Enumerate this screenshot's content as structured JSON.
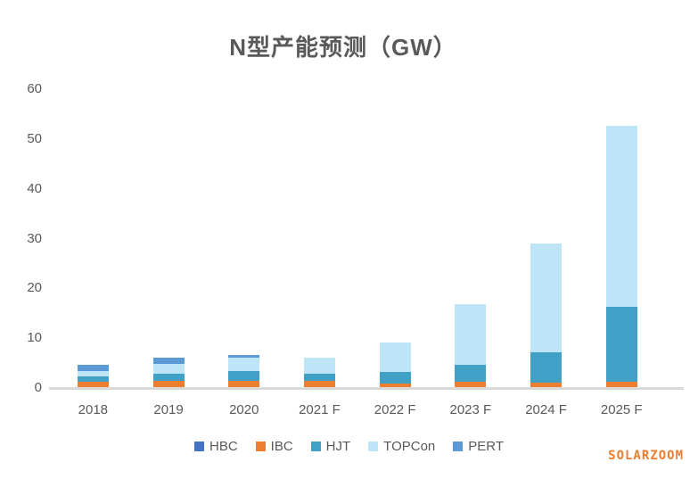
{
  "title": "N型产能预测（GW）",
  "watermark": "SOLARZOOM",
  "colors": {
    "HBC": "#4472C4",
    "IBC": "#ED7D31",
    "HJT": "#41A0C6",
    "TOPCon": "#BDE4F7",
    "PERT": "#5B9BD5",
    "axis_line": "#D9D9D9",
    "text": "#595959",
    "watermark": "#ED7D31"
  },
  "chart_data": {
    "type": "bar",
    "stacked": true,
    "title": "N型产能预测（GW）",
    "categories": [
      "2018",
      "2019",
      "2020",
      "2021 F",
      "2022 F",
      "2023 F",
      "2024 F",
      "2025 F"
    ],
    "series": [
      {
        "name": "HBC",
        "color": "#4472C4",
        "values": [
          0,
          0,
          0,
          0,
          0,
          0,
          0,
          0
        ]
      },
      {
        "name": "IBC",
        "color": "#ED7D31",
        "values": [
          1.1,
          1.2,
          1.2,
          1.2,
          0.7,
          1.0,
          0.9,
          1.1
        ]
      },
      {
        "name": "HJT",
        "color": "#41A0C6",
        "values": [
          1.0,
          1.5,
          2.0,
          1.5,
          2.3,
          3.4,
          6.0,
          15.0
        ]
      },
      {
        "name": "TOPCon",
        "color": "#BDE4F7",
        "values": [
          1.2,
          1.9,
          2.7,
          3.2,
          5.9,
          12.2,
          22.0,
          36.3
        ]
      },
      {
        "name": "PERT",
        "color": "#5B9BD5",
        "values": [
          1.1,
          1.4,
          0.5,
          0,
          0,
          0,
          0,
          0
        ]
      }
    ],
    "totals": [
      4.4,
      6.0,
      6.4,
      5.9,
      8.9,
      16.6,
      28.9,
      52.4
    ],
    "xlabel": "",
    "ylabel": "",
    "ylim": [
      0,
      60
    ],
    "yticks": [
      0,
      10,
      20,
      30,
      40,
      50,
      60
    ],
    "grid": false,
    "legend_position": "bottom",
    "legend": [
      "HBC",
      "IBC",
      "HJT",
      "TOPCon",
      "PERT"
    ]
  }
}
